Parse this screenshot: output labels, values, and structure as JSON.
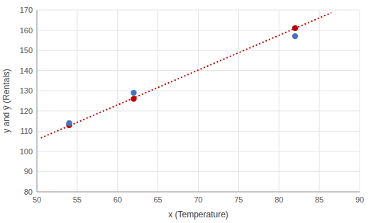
{
  "chart_data": {
    "type": "scatter",
    "xlabel": "x (Temperature)",
    "ylabel": "y and ŷ (Rentals)",
    "xlim": [
      50,
      90
    ],
    "ylim": [
      80,
      170
    ],
    "xticks": [
      50,
      55,
      60,
      65,
      70,
      75,
      80,
      85,
      90
    ],
    "yticks": [
      80,
      90,
      100,
      110,
      120,
      130,
      140,
      150,
      160,
      170
    ],
    "grid": true,
    "series": [
      {
        "type": "line",
        "line_style": "dotted",
        "color": "#C00000",
        "x": [
          50.5,
          86.5
        ],
        "values": [
          106.6554487,
          168.6169872
        ]
      },
      {
        "type": "scatter",
        "marker": "circle",
        "color": "#C00000",
        "x": [
          54,
          62,
          82
        ],
        "values": [
          113,
          126,
          161
        ]
      },
      {
        "type": "scatter",
        "marker": "circle",
        "color": "#4472C4",
        "x": [
          54,
          62,
          82
        ],
        "values": [
          114,
          129,
          157
        ]
      }
    ]
  }
}
